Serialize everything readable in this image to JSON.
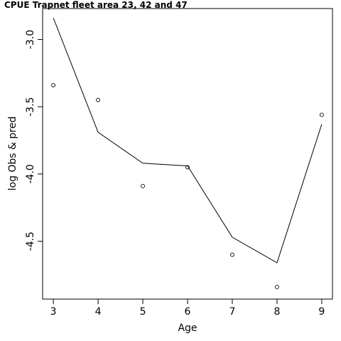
{
  "chart_data": {
    "type": "line",
    "title": "CPUE Trapnet fleet area 23, 42 and 47",
    "xlabel": "Age",
    "ylabel": "log Obs & pred",
    "xlim": [
      2.76,
      9.24
    ],
    "ylim": [
      -4.93,
      -2.77
    ],
    "x_ticks": [
      3,
      4,
      5,
      6,
      7,
      8,
      9
    ],
    "y_ticks": [
      -3.0,
      -3.5,
      -4.0,
      -4.5
    ],
    "y_tick_labels": [
      "-3.0",
      "-3.5",
      "-4.0",
      "-4.5"
    ],
    "grid": false,
    "legend": "none",
    "series": [
      {
        "kind": "points",
        "x": [
          3,
          4,
          5,
          6,
          7,
          8,
          9
        ],
        "y": [
          -3.34,
          -3.45,
          -4.09,
          -3.95,
          -4.6,
          -4.84,
          -3.56
        ]
      },
      {
        "kind": "line",
        "x": [
          3,
          4,
          5,
          6,
          7,
          8,
          9
        ],
        "y": [
          -2.84,
          -3.69,
          -3.92,
          -3.94,
          -4.47,
          -4.66,
          -3.63
        ]
      }
    ]
  }
}
